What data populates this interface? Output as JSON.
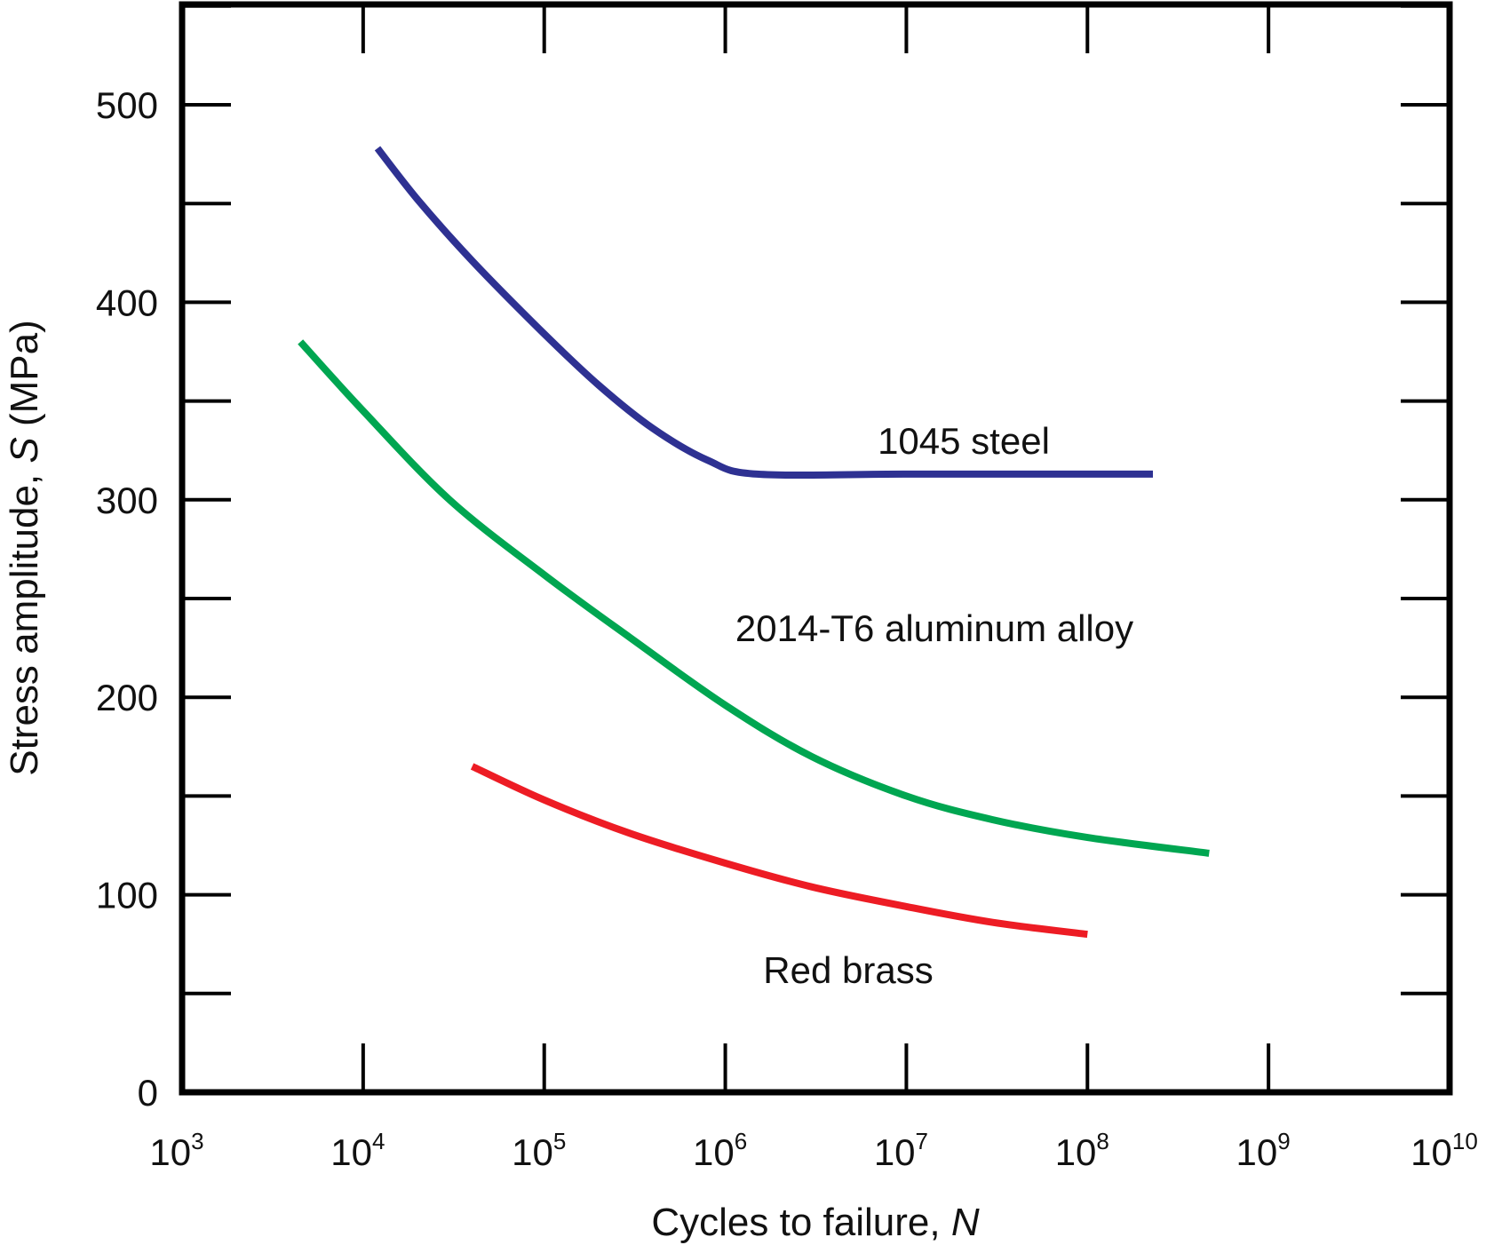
{
  "chart_data": {
    "type": "line",
    "title": "",
    "xlabel": "Cycles to failure,",
    "xlabel_var": "N",
    "ylabel": "Stress amplitude,",
    "ylabel_var": "S",
    "ylabel_unit": "(MPa)",
    "x_scale": "log",
    "xlim": [
      1000,
      10000000000
    ],
    "ylim": [
      0,
      500
    ],
    "grid": false,
    "x_ticks": [
      {
        "value": 1000,
        "base": "10",
        "exp": "3"
      },
      {
        "value": 10000,
        "base": "10",
        "exp": "4"
      },
      {
        "value": 100000,
        "base": "10",
        "exp": "5"
      },
      {
        "value": 1000000,
        "base": "10",
        "exp": "6"
      },
      {
        "value": 10000000,
        "base": "10",
        "exp": "7"
      },
      {
        "value": 100000000,
        "base": "10",
        "exp": "8"
      },
      {
        "value": 1000000000,
        "base": "10",
        "exp": "9"
      },
      {
        "value": 10000000000,
        "base": "10",
        "exp": "10"
      }
    ],
    "y_ticks": [
      {
        "value": 0,
        "label": "0"
      },
      {
        "value": 100,
        "label": "100"
      },
      {
        "value": 200,
        "label": "200"
      },
      {
        "value": 300,
        "label": "300"
      },
      {
        "value": 400,
        "label": "400"
      },
      {
        "value": 500,
        "label": "500"
      }
    ],
    "y_minor_ticks": [
      50,
      150,
      250,
      350,
      450,
      550
    ],
    "series": [
      {
        "name": "1045 steel",
        "color": "#2e3192",
        "points": [
          [
            12000,
            478
          ],
          [
            20000,
            452
          ],
          [
            40000,
            421
          ],
          [
            100000,
            384
          ],
          [
            200000,
            358
          ],
          [
            400000,
            336
          ],
          [
            800000,
            320
          ],
          [
            1500000,
            313
          ],
          [
            10000000,
            313
          ],
          [
            100000000,
            313
          ],
          [
            230000000,
            313
          ]
        ]
      },
      {
        "name": "2014-T6 aluminum alloy",
        "color": "#00a651",
        "points": [
          [
            4500,
            380
          ],
          [
            10000,
            345
          ],
          [
            30000,
            300
          ],
          [
            100000,
            262
          ],
          [
            300000,
            230
          ],
          [
            1000000,
            196
          ],
          [
            3000000,
            170
          ],
          [
            10000000,
            150
          ],
          [
            30000000,
            138
          ],
          [
            100000000,
            129
          ],
          [
            470000000,
            121
          ]
        ]
      },
      {
        "name": "Red brass",
        "color": "#ed1c24",
        "points": [
          [
            40000,
            165
          ],
          [
            100000,
            148
          ],
          [
            300000,
            131
          ],
          [
            1000000,
            116
          ],
          [
            3000000,
            104
          ],
          [
            10000000,
            94
          ],
          [
            30000000,
            86
          ],
          [
            100000000,
            80
          ]
        ]
      }
    ]
  }
}
